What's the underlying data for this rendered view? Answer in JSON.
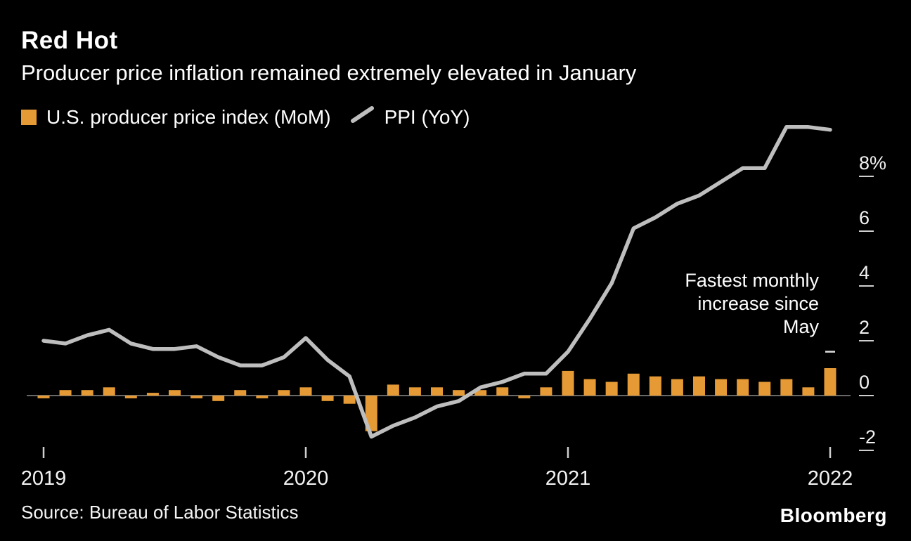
{
  "header": {
    "title": "Red Hot",
    "subtitle": "Producer price inflation remained extremely elevated in January"
  },
  "legend": {
    "items": [
      {
        "label": "U.S. producer price index (MoM)",
        "marker": "square",
        "color": "#E59A35"
      },
      {
        "label": "PPI (YoY)",
        "marker": "line",
        "color": "#BEBEBE"
      }
    ]
  },
  "annotation": {
    "text": "Fastest monthly\nincrease since\nMay"
  },
  "footer": {
    "source": "Source: Bureau of Labor Statistics",
    "brand": "Bloomberg"
  },
  "colors": {
    "background": "#000000",
    "bar": "#E59A35",
    "line": "#BEBEBE",
    "axis_text": "#F2F2F2",
    "zero_line": "#8A8A8A",
    "tick": "#CFCFCF"
  },
  "chart_data": {
    "type": "bar+line",
    "title": "Red Hot",
    "subtitle": "Producer price inflation remained extremely elevated in January",
    "x": [
      "2019-01",
      "2019-02",
      "2019-03",
      "2019-04",
      "2019-05",
      "2019-06",
      "2019-07",
      "2019-08",
      "2019-09",
      "2019-10",
      "2019-11",
      "2019-12",
      "2020-01",
      "2020-02",
      "2020-03",
      "2020-04",
      "2020-05",
      "2020-06",
      "2020-07",
      "2020-08",
      "2020-09",
      "2020-10",
      "2020-11",
      "2020-12",
      "2021-01",
      "2021-02",
      "2021-03",
      "2021-04",
      "2021-05",
      "2021-06",
      "2021-07",
      "2021-08",
      "2021-09",
      "2021-10",
      "2021-11",
      "2021-12",
      "2022-01"
    ],
    "x_tick_labels": [
      "2019",
      "2020",
      "2021",
      "2022"
    ],
    "y_ticks": [
      8,
      6,
      4,
      2,
      0,
      -2
    ],
    "y_tick_labels": [
      "8%",
      "6",
      "4",
      "2",
      "0",
      "-2"
    ],
    "ylim": [
      -2.7,
      10.3
    ],
    "legend_position": "top-left",
    "grid": false,
    "series": [
      {
        "name": "U.S. producer price index (MoM)",
        "type": "bar",
        "color": "#E59A35",
        "values": [
          -0.1,
          0.2,
          0.2,
          0.3,
          -0.1,
          0.1,
          0.2,
          -0.1,
          -0.2,
          0.2,
          -0.1,
          0.2,
          0.3,
          -0.2,
          -0.3,
          -1.3,
          0.4,
          0.3,
          0.3,
          0.2,
          0.2,
          0.3,
          -0.1,
          0.3,
          0.9,
          0.6,
          0.5,
          0.8,
          0.7,
          0.6,
          0.7,
          0.6,
          0.6,
          0.5,
          0.6,
          0.3,
          1.0
        ]
      },
      {
        "name": "PPI (YoY)",
        "type": "line",
        "color": "#BEBEBE",
        "values": [
          2.0,
          1.9,
          2.2,
          2.4,
          1.9,
          1.7,
          1.7,
          1.8,
          1.4,
          1.1,
          1.1,
          1.4,
          2.1,
          1.3,
          0.7,
          -1.5,
          -1.1,
          -0.8,
          -0.4,
          -0.2,
          0.3,
          0.5,
          0.8,
          0.8,
          1.6,
          2.8,
          4.1,
          6.1,
          6.5,
          7.0,
          7.3,
          7.8,
          8.3,
          8.3,
          9.8,
          9.8,
          9.7
        ]
      }
    ],
    "marker": {
      "x_index": 36,
      "value": 1.6
    }
  }
}
